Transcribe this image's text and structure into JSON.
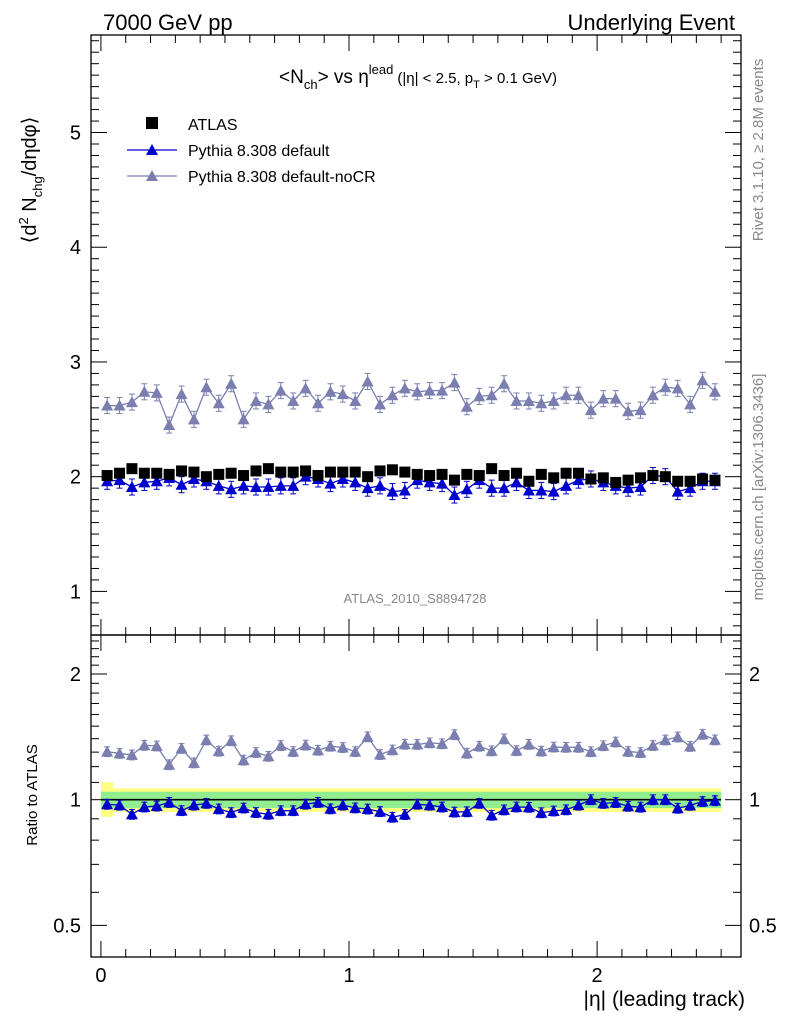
{
  "header": {
    "left_title": "7000 GeV pp",
    "right_title": "Underlying Event"
  },
  "plot_title": {
    "main_prefix": "<N",
    "main_sub": "ch",
    "main_mid": "> vs η",
    "main_sup": "lead",
    "cuts_prefix": "(|η| < 2.5, p",
    "cuts_sub": "T",
    "cuts_suffix": " > 0.1 GeV)"
  },
  "axes": {
    "main_ylabel": {
      "a": "⟨d",
      "b": "2",
      "c": " N",
      "d": "chg",
      "e": "/dηdφ⟩"
    },
    "ratio_ylabel": "Ratio to ATLAS",
    "xlabel": "|η| (leading track)"
  },
  "side_labels": {
    "rivet": "Rivet 3.1.10, ≥ 2.8M events",
    "mcplots": "mcplots.cern.ch [arXiv:1306.3436]"
  },
  "analysis_tag": "ATLAS_2010_S8894728",
  "legend": [
    {
      "label": "ATLAS",
      "color": "#000000",
      "marker": "square"
    },
    {
      "label": "Pythia 8.308 default",
      "color": "#0000cc",
      "marker": "triangle"
    },
    {
      "label": "Pythia 8.308 default-noCR",
      "color": "#7a7fb0",
      "marker": "triangle"
    }
  ],
  "chart_data": {
    "type": "line",
    "title": "<Nch> vs η_lead (|η| < 2.5, pT > 0.1 GeV)",
    "x": [
      0.025,
      0.075,
      0.125,
      0.175,
      0.225,
      0.275,
      0.325,
      0.375,
      0.425,
      0.475,
      0.525,
      0.575,
      0.625,
      0.675,
      0.725,
      0.775,
      0.825,
      0.875,
      0.925,
      0.975,
      1.025,
      1.075,
      1.125,
      1.175,
      1.225,
      1.275,
      1.325,
      1.375,
      1.425,
      1.475,
      1.525,
      1.575,
      1.625,
      1.675,
      1.725,
      1.775,
      1.825,
      1.875,
      1.925,
      1.975,
      2.025,
      2.075,
      2.125,
      2.175,
      2.225,
      2.275,
      2.325,
      2.375,
      2.425,
      2.475
    ],
    "xlim": [
      -0.04,
      2.58
    ],
    "xticks": [
      0,
      1,
      2
    ],
    "series": [
      {
        "name": "ATLAS",
        "color": "#000000",
        "marker": "square",
        "values": [
          2.01,
          2.03,
          2.07,
          2.03,
          2.03,
          2.02,
          2.05,
          2.04,
          2.0,
          2.02,
          2.03,
          2.01,
          2.05,
          2.07,
          2.04,
          2.04,
          2.05,
          2.01,
          2.04,
          2.04,
          2.04,
          2.0,
          2.05,
          2.06,
          2.04,
          2.02,
          2.01,
          2.02,
          1.97,
          2.02,
          2.01,
          2.07,
          2.01,
          2.03,
          1.96,
          2.02,
          1.99,
          2.03,
          2.03,
          1.98,
          1.99,
          1.95,
          1.97,
          1.99,
          2.01,
          2.0,
          1.96,
          1.96,
          1.98,
          1.97
        ]
      },
      {
        "name": "Pythia 8.308 default",
        "color": "#0000cc",
        "marker": "triangle",
        "values": [
          1.96,
          1.97,
          1.91,
          1.95,
          1.96,
          1.99,
          1.93,
          1.98,
          1.96,
          1.92,
          1.89,
          1.92,
          1.91,
          1.91,
          1.92,
          1.92,
          2.0,
          1.98,
          1.94,
          1.98,
          1.95,
          1.9,
          1.92,
          1.87,
          1.88,
          1.97,
          1.95,
          1.94,
          1.84,
          1.89,
          1.97,
          1.9,
          1.9,
          1.95,
          1.88,
          1.88,
          1.87,
          1.92,
          1.97,
          1.98,
          1.95,
          1.92,
          1.9,
          1.91,
          2.01,
          2.0,
          1.87,
          1.9,
          1.96,
          1.96
        ]
      },
      {
        "name": "Pythia 8.308 default-noCR",
        "color": "#7a7fb0",
        "marker": "triangle",
        "values": [
          2.62,
          2.62,
          2.65,
          2.74,
          2.73,
          2.45,
          2.72,
          2.5,
          2.78,
          2.64,
          2.81,
          2.5,
          2.66,
          2.63,
          2.75,
          2.66,
          2.77,
          2.64,
          2.74,
          2.72,
          2.66,
          2.83,
          2.63,
          2.71,
          2.77,
          2.74,
          2.75,
          2.75,
          2.82,
          2.61,
          2.7,
          2.71,
          2.81,
          2.66,
          2.66,
          2.64,
          2.66,
          2.71,
          2.71,
          2.58,
          2.68,
          2.68,
          2.57,
          2.58,
          2.71,
          2.78,
          2.77,
          2.63,
          2.84,
          2.74
        ]
      }
    ],
    "main_panel": {
      "ylabel": "⟨d² N_chg/dηdφ⟩",
      "ylim": [
        0.62,
        5.85
      ],
      "yticks": [
        1,
        2,
        3,
        4,
        5
      ],
      "yerr": 0.07
    },
    "ratio_panel": {
      "ylabel": "Ratio to ATLAS",
      "ylim": [
        0.42,
        2.48
      ],
      "yticks": [
        0.5,
        1,
        2
      ],
      "scale": "log",
      "band_inner": [
        0.955,
        1.045
      ],
      "band_outer": [
        0.935,
        1.065
      ],
      "band_first_bin_outer": [
        0.91,
        1.1
      ],
      "band_colors": {
        "inner": "#90ee90",
        "outer": "#ffff80"
      },
      "reference_line": 1
    },
    "grid": false,
    "legend_position": "top-left"
  }
}
